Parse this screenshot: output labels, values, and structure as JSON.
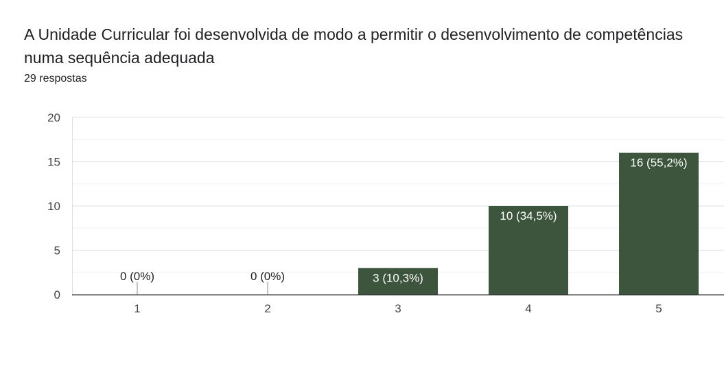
{
  "title": "A Unidade Curricular foi desenvolvida de modo a permitir o desenvolvimento de competências numa sequência adequada",
  "responses": "29 respostas",
  "colors": {
    "bar": "#3d553d",
    "grid_major": "#e0e0e0",
    "grid_minor": "#f1f1f1",
    "axis": "#333333"
  },
  "chart_data": {
    "type": "bar",
    "title": "A Unidade Curricular foi desenvolvida de modo a permitir o desenvolvimento de competências numa sequência adequada",
    "xlabel": "",
    "ylabel": "",
    "categories": [
      "1",
      "2",
      "3",
      "4",
      "5"
    ],
    "values": [
      0,
      0,
      3,
      10,
      16
    ],
    "data_labels": [
      "0 (0%)",
      "0 (0%)",
      "3 (10,3%)",
      "10 (34,5%)",
      "16 (55,2%)"
    ],
    "ylim": [
      0,
      20
    ],
    "yticks": [
      "0",
      "5",
      "10",
      "15",
      "20"
    ],
    "ytick_values": [
      0,
      5,
      10,
      15,
      20
    ],
    "grid": true,
    "legend": "none"
  }
}
